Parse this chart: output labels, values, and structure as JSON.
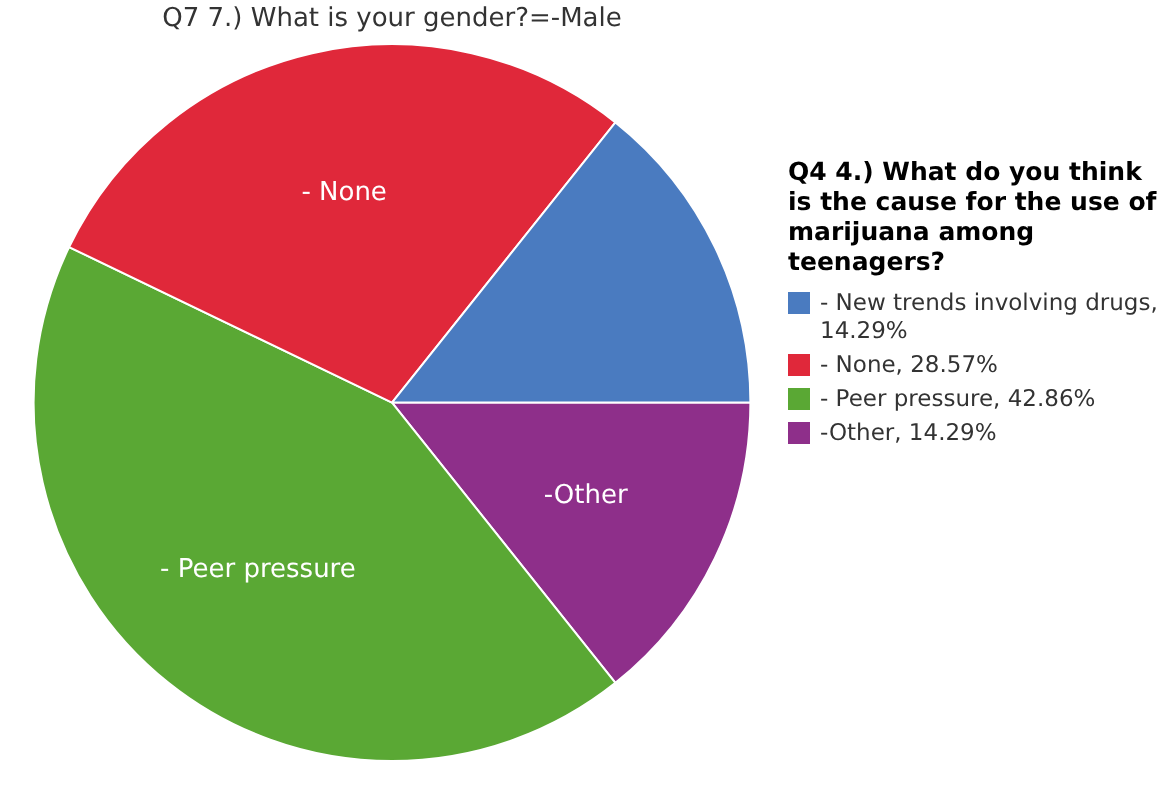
{
  "chart_data": {
    "type": "pie",
    "title": "Q7 7.) What is your gender?=-Male",
    "legend_title": "Q4 4.) What do you think is the cause for the use of marijuana among teenagers?",
    "legend": "right",
    "categories": [
      "- New trends involving drugs, 14.29%",
      "- None, 28.57%",
      "- Peer pressure, 42.86%",
      "-Other, 14.29%"
    ],
    "values": [
      14.29,
      28.57,
      42.86,
      14.29
    ],
    "colors": [
      "#4a7bc0",
      "#e0283a",
      "#5aa834",
      "#8e2f8a"
    ],
    "annotations": [
      {
        "text": "- None",
        "x": "- None, 28.57%"
      },
      {
        "text": "- Peer pressure",
        "x": "- Peer pressure, 42.86%"
      },
      {
        "text": "-Other",
        "x": "-Other, 14.29%"
      }
    ]
  }
}
